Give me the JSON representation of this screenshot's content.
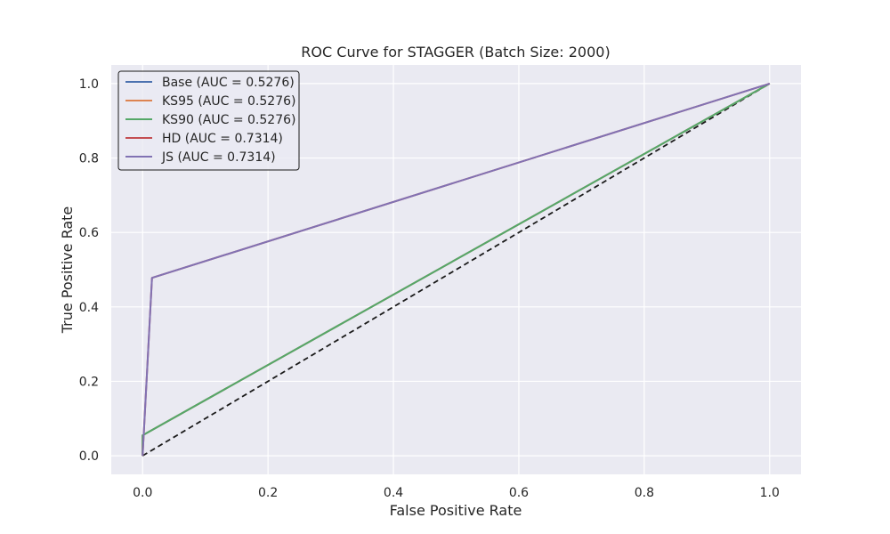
{
  "chart_data": {
    "type": "line",
    "title": "ROC Curve for STAGGER (Batch Size: 2000)",
    "xlabel": "False Positive Rate",
    "ylabel": "True Positive Rate",
    "xlim": [
      -0.05,
      1.05
    ],
    "ylim": [
      -0.05,
      1.05
    ],
    "xticks": [
      0.0,
      0.2,
      0.4,
      0.6,
      0.8,
      1.0
    ],
    "yticks": [
      0.0,
      0.2,
      0.4,
      0.6,
      0.8,
      1.0
    ],
    "xtick_labels": [
      "0.0",
      "0.2",
      "0.4",
      "0.6",
      "0.8",
      "1.0"
    ],
    "ytick_labels": [
      "0.0",
      "0.2",
      "0.4",
      "0.6",
      "0.8",
      "1.0"
    ],
    "grid": true,
    "background": "#eaeaf2",
    "legend_position": "top-left",
    "series": [
      {
        "name": "Base (AUC = 0.5276)",
        "color": "#4c72b0",
        "x": [
          0.0,
          0.0,
          1.0
        ],
        "y": [
          0.0,
          0.055,
          1.0
        ]
      },
      {
        "name": "KS95 (AUC = 0.5276)",
        "color": "#dd8452",
        "x": [
          0.0,
          0.0,
          1.0
        ],
        "y": [
          0.0,
          0.055,
          1.0
        ]
      },
      {
        "name": "KS90 (AUC = 0.5276)",
        "color": "#55a868",
        "x": [
          0.0,
          0.0,
          1.0
        ],
        "y": [
          0.0,
          0.055,
          1.0
        ]
      },
      {
        "name": "HD (AUC = 0.7314)",
        "color": "#c44e52",
        "x": [
          0.0,
          0.015,
          1.0
        ],
        "y": [
          0.0,
          0.478,
          1.0
        ]
      },
      {
        "name": "JS (AUC = 0.7314)",
        "color": "#8172b3",
        "x": [
          0.0,
          0.015,
          1.0
        ],
        "y": [
          0.0,
          0.478,
          1.0
        ]
      }
    ],
    "reference_line": {
      "x": [
        0.0,
        1.0
      ],
      "y": [
        0.0,
        1.0
      ],
      "color": "#1a1a1a",
      "style": "dashed"
    }
  }
}
